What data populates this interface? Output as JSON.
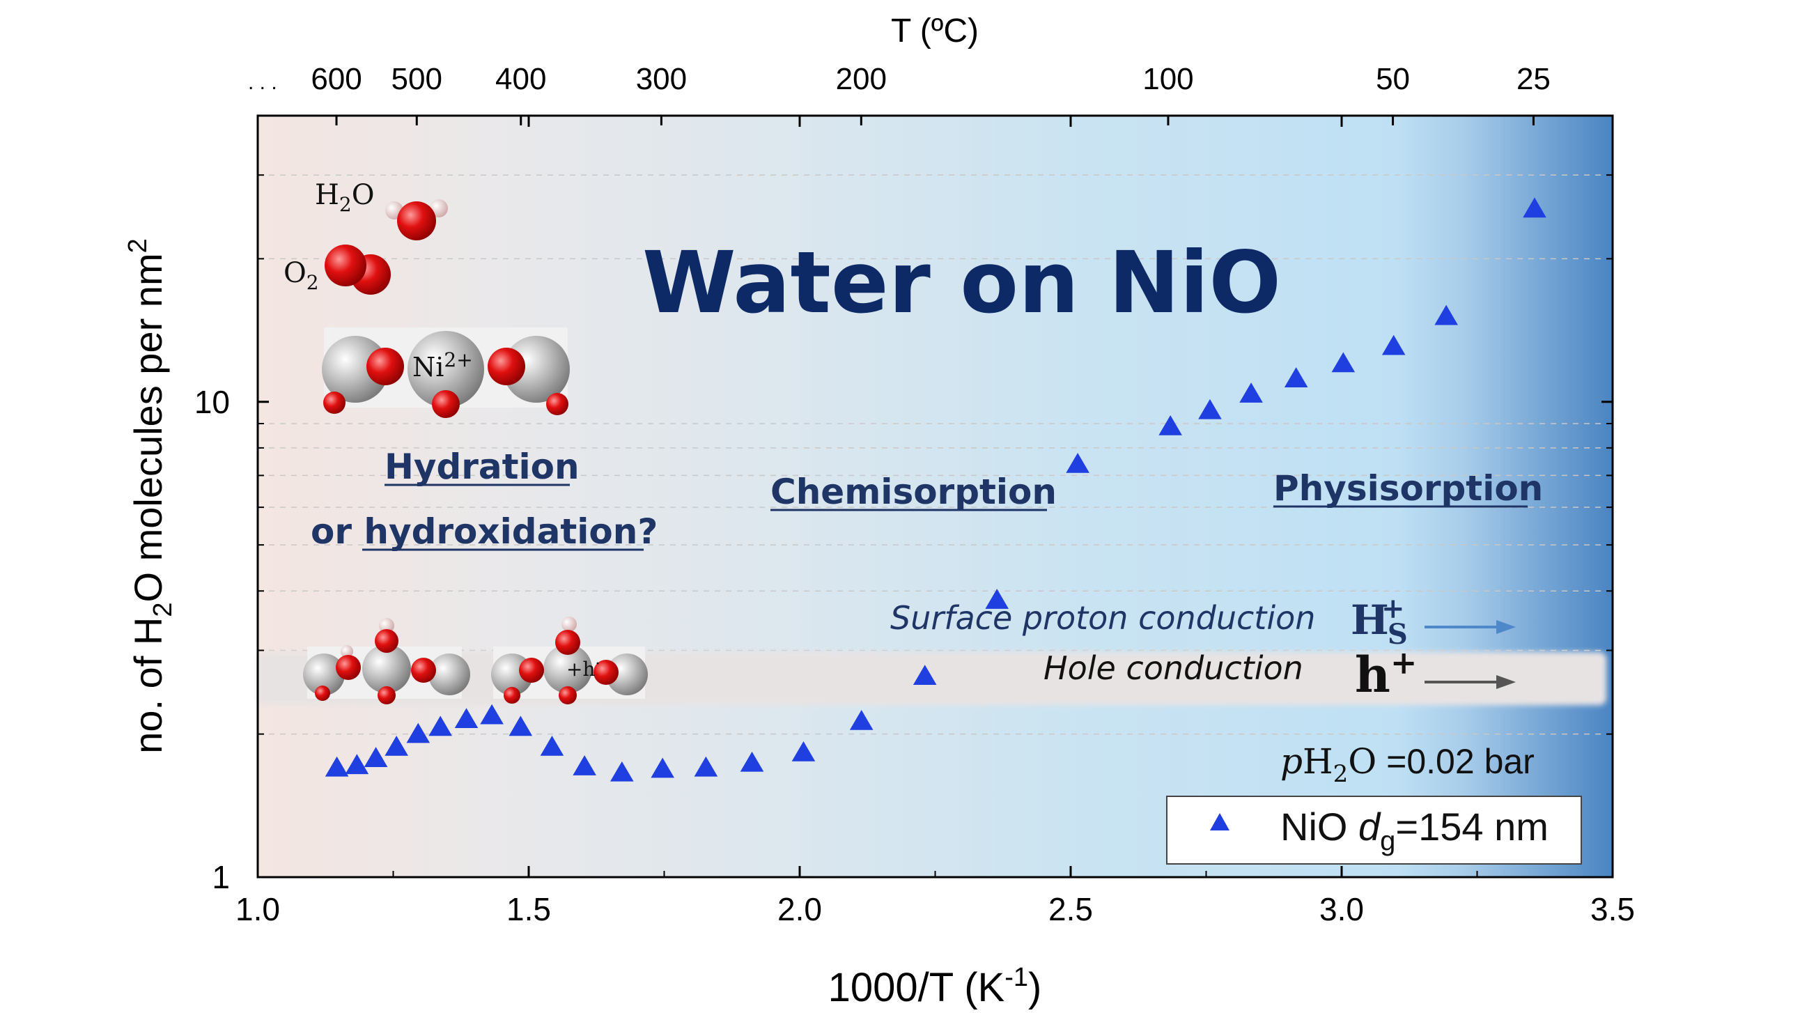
{
  "chart_data": {
    "type": "scatter",
    "title": "Water on NiO",
    "xlabel_main": "1000/T (K",
    "xlabel_sup": "-1",
    "xlabel_close": ")",
    "ylabel_pre": "no. of H",
    "ylabel_sub": "2",
    "ylabel_post": "O molecules per nm",
    "ylabel_sup": "2",
    "top_axis_label": "T (ºC)",
    "xlim": [
      1.0,
      3.5
    ],
    "ylim": [
      1,
      40
    ],
    "y_scale": "log",
    "x_ticks": [
      "1.0",
      "1.5",
      "2.0",
      "2.5",
      "3.0",
      "3.5"
    ],
    "y_ticks": [
      "1",
      "10"
    ],
    "top_ticks": [
      {
        "value": 600,
        "label": "600"
      },
      {
        "value": 500,
        "label": "500"
      },
      {
        "value": 400,
        "label": "400"
      },
      {
        "value": 300,
        "label": "300"
      },
      {
        "value": 200,
        "label": "200"
      },
      {
        "value": 100,
        "label": "100"
      },
      {
        "value": 50,
        "label": "50"
      },
      {
        "value": 25,
        "label": "25"
      }
    ],
    "top_ellipsis": ". . .",
    "regions": [
      {
        "label_line1": "Hydration",
        "label_prefix": "or ",
        "label_line2": "hydroxidation?"
      },
      {
        "label": "Chemisorption"
      },
      {
        "label": "Physisorption"
      }
    ],
    "conduction": {
      "proton": "Surface proton conduction",
      "proton_symbol": "H",
      "proton_sub": "S",
      "proton_sup": "+",
      "hole": "Hole conduction",
      "hole_symbol": "h",
      "hole_sup": "+"
    },
    "condition": {
      "prefix": "p",
      "species": "H",
      "sub": "2",
      "species2": "O",
      "value": " =0.02 bar"
    },
    "molecule_labels": {
      "h2o_pre": "H",
      "h2o_sub": "2",
      "h2o_post": "O",
      "o2_pre": "O",
      "o2_sub": "2",
      "ni_pre": "Ni",
      "ni_sup": "2+",
      "hole": "+h",
      "hole_sup": "·"
    },
    "legend": {
      "pre": "NiO ",
      "d": "d",
      "sub": "g",
      "post": "=154 nm",
      "position": "bottom-right"
    },
    "series": [
      {
        "marker": "triangle",
        "color": "#1f3fe0",
        "points": [
          [
            1.146,
            1.7
          ],
          [
            1.183,
            1.72
          ],
          [
            1.218,
            1.78
          ],
          [
            1.256,
            1.88
          ],
          [
            1.296,
            2.0
          ],
          [
            1.337,
            2.07
          ],
          [
            1.385,
            2.15
          ],
          [
            1.432,
            2.19
          ],
          [
            1.485,
            2.07
          ],
          [
            1.543,
            1.88
          ],
          [
            1.603,
            1.71
          ],
          [
            1.672,
            1.66
          ],
          [
            1.747,
            1.69
          ],
          [
            1.827,
            1.7
          ],
          [
            1.912,
            1.74
          ],
          [
            2.007,
            1.83
          ],
          [
            2.114,
            2.13
          ],
          [
            2.231,
            2.65
          ],
          [
            2.364,
            3.83
          ],
          [
            2.513,
            7.4
          ],
          [
            2.684,
            8.88
          ],
          [
            2.757,
            9.6
          ],
          [
            2.833,
            10.4
          ],
          [
            2.916,
            11.2
          ],
          [
            3.003,
            12.05
          ],
          [
            3.096,
            13.1
          ],
          [
            3.193,
            15.15
          ],
          [
            3.356,
            25.5
          ]
        ]
      }
    ],
    "colors": {
      "title": "#0d2a66",
      "region_label": "#1f3566",
      "proton_arrow": "#4e88c9",
      "hole_arrow": "#555555",
      "marker": "#1f3fe0"
    }
  }
}
